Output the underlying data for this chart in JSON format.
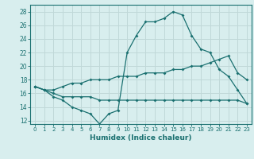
{
  "xlabel": "Humidex (Indice chaleur)",
  "bg_color": "#d8eeee",
  "grid_color": "#c0d8d8",
  "line_color": "#1a7070",
  "xlim": [
    -0.5,
    23.5
  ],
  "ylim": [
    11.5,
    29.0
  ],
  "xticks": [
    0,
    1,
    2,
    3,
    4,
    5,
    6,
    7,
    8,
    9,
    10,
    11,
    12,
    13,
    14,
    15,
    16,
    17,
    18,
    19,
    20,
    21,
    22,
    23
  ],
  "yticks": [
    12,
    14,
    16,
    18,
    20,
    22,
    24,
    26,
    28
  ],
  "line1_x": [
    0,
    1,
    2,
    3,
    4,
    5,
    6,
    7,
    8,
    9,
    10,
    11,
    12,
    13,
    14,
    15,
    16,
    17,
    18,
    19,
    20,
    21,
    22,
    23
  ],
  "line1_y": [
    17.0,
    16.5,
    15.5,
    15.0,
    14.0,
    13.5,
    13.0,
    11.5,
    13.0,
    13.5,
    22.0,
    24.5,
    26.5,
    26.5,
    27.0,
    28.0,
    27.5,
    24.5,
    22.5,
    22.0,
    19.5,
    18.5,
    16.5,
    14.5
  ],
  "line2_x": [
    0,
    1,
    2,
    3,
    4,
    5,
    6,
    7,
    8,
    9,
    10,
    11,
    12,
    13,
    14,
    15,
    16,
    17,
    18,
    19,
    20,
    21,
    22,
    23
  ],
  "line2_y": [
    17.0,
    16.5,
    16.0,
    15.5,
    15.5,
    15.5,
    15.5,
    15.0,
    15.0,
    15.0,
    15.0,
    15.0,
    15.0,
    15.0,
    15.0,
    15.0,
    15.0,
    15.0,
    15.0,
    15.0,
    15.0,
    15.0,
    15.0,
    14.5
  ],
  "line3_x": [
    0,
    1,
    2,
    3,
    4,
    5,
    6,
    7,
    8,
    9,
    10,
    11,
    12,
    13,
    14,
    15,
    16,
    17,
    18,
    19,
    20,
    21,
    22,
    23
  ],
  "line3_y": [
    17.0,
    16.5,
    16.5,
    17.0,
    17.5,
    17.5,
    18.0,
    18.0,
    18.0,
    18.5,
    18.5,
    18.5,
    19.0,
    19.0,
    19.0,
    19.5,
    19.5,
    20.0,
    20.0,
    20.5,
    21.0,
    21.5,
    19.0,
    18.0
  ]
}
